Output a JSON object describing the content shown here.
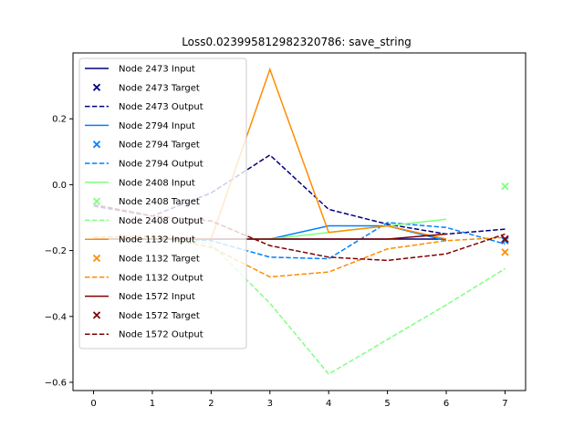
{
  "chart_data": {
    "type": "line",
    "title": "Loss0.023995812982320786: save_string",
    "xlabel": "",
    "ylabel": "",
    "xlim": [
      -0.35,
      7.35
    ],
    "ylim": [
      -0.625,
      0.4
    ],
    "xticks": [
      0,
      1,
      2,
      3,
      4,
      5,
      6,
      7
    ],
    "yticks": [
      -0.6,
      -0.4,
      -0.2,
      0.0,
      0.2
    ],
    "ytick_labels": [
      "−0.6",
      "−0.4",
      "−0.2",
      "0.0",
      "0.2"
    ],
    "legend_position": "upper-left",
    "grid": false,
    "nodes": [
      {
        "color": "#000080",
        "input_label": "Node 2473 Input",
        "target_label": "Node 2473 Target",
        "output_label": "Node 2473 Output",
        "input": [
          [
            0,
            -0.165
          ],
          [
            1,
            -0.165
          ],
          [
            2,
            -0.165
          ],
          [
            3,
            -0.165
          ],
          [
            4,
            -0.165
          ],
          [
            5,
            -0.165
          ],
          [
            6,
            -0.165
          ]
        ],
        "target": [
          7,
          -0.165
        ],
        "output": [
          [
            0,
            -0.065
          ],
          [
            1,
            -0.095
          ],
          [
            2,
            -0.025
          ],
          [
            3,
            0.09
          ],
          [
            4,
            -0.075
          ],
          [
            5,
            -0.12
          ],
          [
            6,
            -0.15
          ],
          [
            7,
            -0.135
          ]
        ]
      },
      {
        "color": "#0080ff",
        "input_label": "Node 2794 Input",
        "target_label": "Node 2794 Target",
        "output_label": "Node 2794 Output",
        "input": [
          [
            0,
            -0.165
          ],
          [
            1,
            -0.165
          ],
          [
            2,
            -0.165
          ],
          [
            3,
            -0.165
          ],
          [
            4,
            -0.125
          ],
          [
            5,
            -0.125
          ],
          [
            6,
            -0.17
          ]
        ],
        "target": [
          7,
          -0.17
        ],
        "output": [
          [
            0,
            -0.165
          ],
          [
            1,
            -0.16
          ],
          [
            2,
            -0.17
          ],
          [
            3,
            -0.22
          ],
          [
            4,
            -0.225
          ],
          [
            5,
            -0.115
          ],
          [
            6,
            -0.13
          ],
          [
            7,
            -0.18
          ]
        ]
      },
      {
        "color": "#80ff80",
        "input_label": "Node 2408 Input",
        "target_label": "Node 2408 Target",
        "output_label": "Node 2408 Output",
        "input": [
          [
            0,
            -0.165
          ],
          [
            1,
            -0.165
          ],
          [
            2,
            -0.165
          ],
          [
            3,
            -0.165
          ],
          [
            4,
            -0.145
          ],
          [
            5,
            -0.125
          ],
          [
            6,
            -0.105
          ]
        ],
        "target": [
          7,
          -0.005
        ],
        "output": [
          [
            0,
            -0.165
          ],
          [
            1,
            -0.16
          ],
          [
            2,
            -0.18
          ],
          [
            3,
            -0.36
          ],
          [
            4,
            -0.575
          ],
          [
            5,
            -0.47
          ],
          [
            6,
            -0.365
          ],
          [
            7,
            -0.255
          ]
        ]
      },
      {
        "color": "#ff8c00",
        "input_label": "Node 1132 Input",
        "target_label": "Node 1132 Target",
        "output_label": "Node 1132 Output",
        "input": [
          [
            0,
            -0.165
          ],
          [
            1,
            -0.165
          ],
          [
            2,
            -0.165
          ],
          [
            3,
            0.35
          ],
          [
            4,
            -0.145
          ],
          [
            5,
            -0.125
          ],
          [
            6,
            -0.165
          ]
        ],
        "target": [
          7,
          -0.205
        ],
        "output": [
          [
            0,
            -0.16
          ],
          [
            1,
            -0.155
          ],
          [
            2,
            -0.19
          ],
          [
            3,
            -0.28
          ],
          [
            4,
            -0.265
          ],
          [
            5,
            -0.195
          ],
          [
            6,
            -0.17
          ],
          [
            7,
            -0.16
          ]
        ]
      },
      {
        "color": "#800000",
        "input_label": "Node 1572 Input",
        "target_label": "Node 1572 Target",
        "output_label": "Node 1572 Output",
        "input": [
          [
            0,
            -0.165
          ],
          [
            1,
            -0.165
          ],
          [
            2,
            -0.165
          ],
          [
            3,
            -0.165
          ],
          [
            4,
            -0.165
          ],
          [
            5,
            -0.165
          ],
          [
            6,
            -0.15
          ]
        ],
        "target": [
          7,
          -0.165
        ],
        "output": [
          [
            0,
            -0.06
          ],
          [
            1,
            -0.095
          ],
          [
            2,
            -0.11
          ],
          [
            3,
            -0.185
          ],
          [
            4,
            -0.22
          ],
          [
            5,
            -0.23
          ],
          [
            6,
            -0.21
          ],
          [
            7,
            -0.15
          ]
        ]
      }
    ]
  }
}
